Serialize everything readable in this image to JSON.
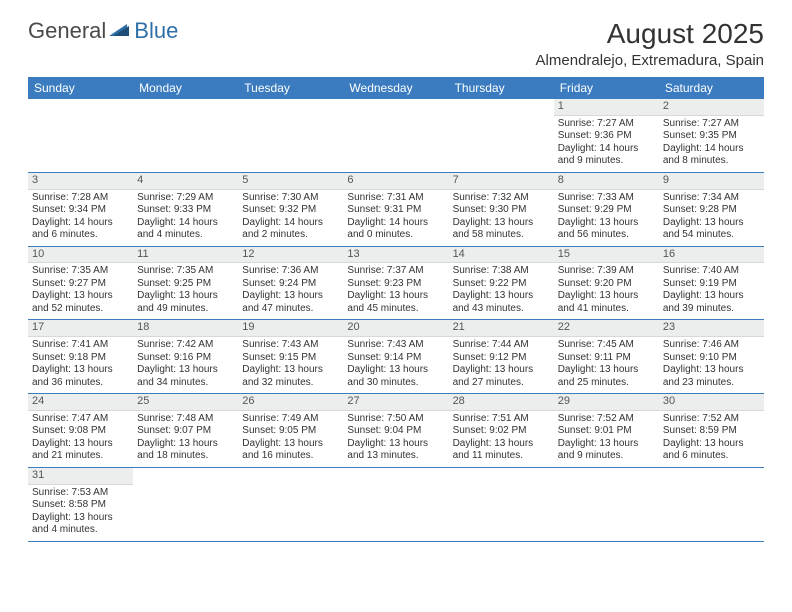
{
  "logo": {
    "part1": "General",
    "part2": "Blue"
  },
  "title": "August 2025",
  "subtitle": "Almendralejo, Extremadura, Spain",
  "colors": {
    "header_bg": "#3a7cbf",
    "header_text": "#ffffff",
    "daynum_bg": "#eceeee",
    "border": "#3a7cbf",
    "text": "#333333",
    "logo_gray": "#4a4a4a",
    "logo_blue": "#2f6fa8",
    "background": "#ffffff"
  },
  "typography": {
    "title_fontsize": 28,
    "subtitle_fontsize": 15,
    "dayheader_fontsize": 12,
    "daynum_fontsize": 11,
    "cell_fontsize": 10,
    "logo_fontsize": 22
  },
  "day_headers": [
    "Sunday",
    "Monday",
    "Tuesday",
    "Wednesday",
    "Thursday",
    "Friday",
    "Saturday"
  ],
  "weeks": [
    [
      {
        "empty": true
      },
      {
        "empty": true
      },
      {
        "empty": true
      },
      {
        "empty": true
      },
      {
        "empty": true
      },
      {
        "day": "1",
        "sunrise": "Sunrise: 7:27 AM",
        "sunset": "Sunset: 9:36 PM",
        "daylight": "Daylight: 14 hours and 9 minutes."
      },
      {
        "day": "2",
        "sunrise": "Sunrise: 7:27 AM",
        "sunset": "Sunset: 9:35 PM",
        "daylight": "Daylight: 14 hours and 8 minutes."
      }
    ],
    [
      {
        "day": "3",
        "sunrise": "Sunrise: 7:28 AM",
        "sunset": "Sunset: 9:34 PM",
        "daylight": "Daylight: 14 hours and 6 minutes."
      },
      {
        "day": "4",
        "sunrise": "Sunrise: 7:29 AM",
        "sunset": "Sunset: 9:33 PM",
        "daylight": "Daylight: 14 hours and 4 minutes."
      },
      {
        "day": "5",
        "sunrise": "Sunrise: 7:30 AM",
        "sunset": "Sunset: 9:32 PM",
        "daylight": "Daylight: 14 hours and 2 minutes."
      },
      {
        "day": "6",
        "sunrise": "Sunrise: 7:31 AM",
        "sunset": "Sunset: 9:31 PM",
        "daylight": "Daylight: 14 hours and 0 minutes."
      },
      {
        "day": "7",
        "sunrise": "Sunrise: 7:32 AM",
        "sunset": "Sunset: 9:30 PM",
        "daylight": "Daylight: 13 hours and 58 minutes."
      },
      {
        "day": "8",
        "sunrise": "Sunrise: 7:33 AM",
        "sunset": "Sunset: 9:29 PM",
        "daylight": "Daylight: 13 hours and 56 minutes."
      },
      {
        "day": "9",
        "sunrise": "Sunrise: 7:34 AM",
        "sunset": "Sunset: 9:28 PM",
        "daylight": "Daylight: 13 hours and 54 minutes."
      }
    ],
    [
      {
        "day": "10",
        "sunrise": "Sunrise: 7:35 AM",
        "sunset": "Sunset: 9:27 PM",
        "daylight": "Daylight: 13 hours and 52 minutes."
      },
      {
        "day": "11",
        "sunrise": "Sunrise: 7:35 AM",
        "sunset": "Sunset: 9:25 PM",
        "daylight": "Daylight: 13 hours and 49 minutes."
      },
      {
        "day": "12",
        "sunrise": "Sunrise: 7:36 AM",
        "sunset": "Sunset: 9:24 PM",
        "daylight": "Daylight: 13 hours and 47 minutes."
      },
      {
        "day": "13",
        "sunrise": "Sunrise: 7:37 AM",
        "sunset": "Sunset: 9:23 PM",
        "daylight": "Daylight: 13 hours and 45 minutes."
      },
      {
        "day": "14",
        "sunrise": "Sunrise: 7:38 AM",
        "sunset": "Sunset: 9:22 PM",
        "daylight": "Daylight: 13 hours and 43 minutes."
      },
      {
        "day": "15",
        "sunrise": "Sunrise: 7:39 AM",
        "sunset": "Sunset: 9:20 PM",
        "daylight": "Daylight: 13 hours and 41 minutes."
      },
      {
        "day": "16",
        "sunrise": "Sunrise: 7:40 AM",
        "sunset": "Sunset: 9:19 PM",
        "daylight": "Daylight: 13 hours and 39 minutes."
      }
    ],
    [
      {
        "day": "17",
        "sunrise": "Sunrise: 7:41 AM",
        "sunset": "Sunset: 9:18 PM",
        "daylight": "Daylight: 13 hours and 36 minutes."
      },
      {
        "day": "18",
        "sunrise": "Sunrise: 7:42 AM",
        "sunset": "Sunset: 9:16 PM",
        "daylight": "Daylight: 13 hours and 34 minutes."
      },
      {
        "day": "19",
        "sunrise": "Sunrise: 7:43 AM",
        "sunset": "Sunset: 9:15 PM",
        "daylight": "Daylight: 13 hours and 32 minutes."
      },
      {
        "day": "20",
        "sunrise": "Sunrise: 7:43 AM",
        "sunset": "Sunset: 9:14 PM",
        "daylight": "Daylight: 13 hours and 30 minutes."
      },
      {
        "day": "21",
        "sunrise": "Sunrise: 7:44 AM",
        "sunset": "Sunset: 9:12 PM",
        "daylight": "Daylight: 13 hours and 27 minutes."
      },
      {
        "day": "22",
        "sunrise": "Sunrise: 7:45 AM",
        "sunset": "Sunset: 9:11 PM",
        "daylight": "Daylight: 13 hours and 25 minutes."
      },
      {
        "day": "23",
        "sunrise": "Sunrise: 7:46 AM",
        "sunset": "Sunset: 9:10 PM",
        "daylight": "Daylight: 13 hours and 23 minutes."
      }
    ],
    [
      {
        "day": "24",
        "sunrise": "Sunrise: 7:47 AM",
        "sunset": "Sunset: 9:08 PM",
        "daylight": "Daylight: 13 hours and 21 minutes."
      },
      {
        "day": "25",
        "sunrise": "Sunrise: 7:48 AM",
        "sunset": "Sunset: 9:07 PM",
        "daylight": "Daylight: 13 hours and 18 minutes."
      },
      {
        "day": "26",
        "sunrise": "Sunrise: 7:49 AM",
        "sunset": "Sunset: 9:05 PM",
        "daylight": "Daylight: 13 hours and 16 minutes."
      },
      {
        "day": "27",
        "sunrise": "Sunrise: 7:50 AM",
        "sunset": "Sunset: 9:04 PM",
        "daylight": "Daylight: 13 hours and 13 minutes."
      },
      {
        "day": "28",
        "sunrise": "Sunrise: 7:51 AM",
        "sunset": "Sunset: 9:02 PM",
        "daylight": "Daylight: 13 hours and 11 minutes."
      },
      {
        "day": "29",
        "sunrise": "Sunrise: 7:52 AM",
        "sunset": "Sunset: 9:01 PM",
        "daylight": "Daylight: 13 hours and 9 minutes."
      },
      {
        "day": "30",
        "sunrise": "Sunrise: 7:52 AM",
        "sunset": "Sunset: 8:59 PM",
        "daylight": "Daylight: 13 hours and 6 minutes."
      }
    ],
    [
      {
        "day": "31",
        "sunrise": "Sunrise: 7:53 AM",
        "sunset": "Sunset: 8:58 PM",
        "daylight": "Daylight: 13 hours and 4 minutes."
      },
      {
        "empty": true
      },
      {
        "empty": true
      },
      {
        "empty": true
      },
      {
        "empty": true
      },
      {
        "empty": true
      },
      {
        "empty": true
      }
    ]
  ]
}
